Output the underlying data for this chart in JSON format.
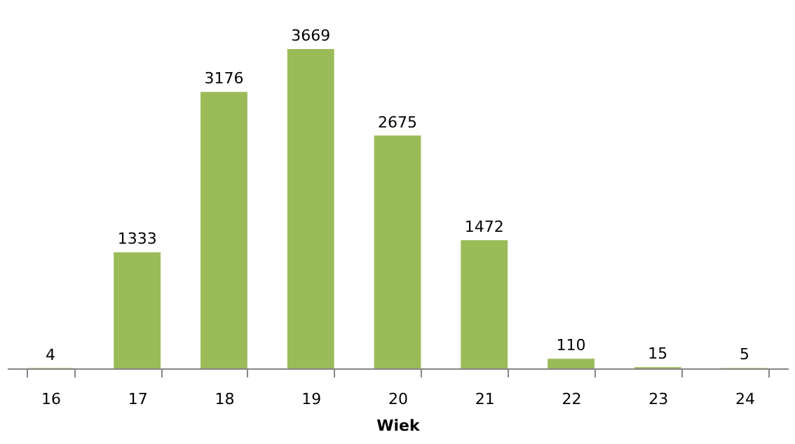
{
  "chart_data": {
    "type": "bar",
    "xlabel": "Wiek",
    "categories": [
      "16",
      "17",
      "18",
      "19",
      "20",
      "21",
      "22",
      "23",
      "24"
    ],
    "values": [
      4,
      1333,
      3176,
      3669,
      2675,
      1472,
      110,
      15,
      5
    ],
    "color": "#9bbb59",
    "data_labels": true,
    "tick_labels": "x"
  }
}
